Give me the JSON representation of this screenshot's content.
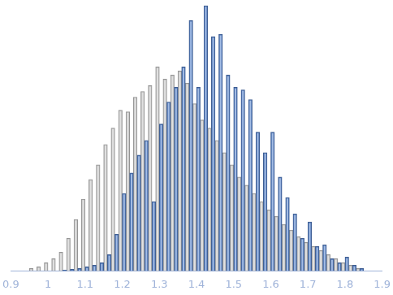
{
  "chart_data": {
    "type": "histogram",
    "bins": [
      0.94,
      0.96,
      0.98,
      1.0,
      1.02,
      1.04,
      1.06,
      1.08,
      1.1,
      1.12,
      1.14,
      1.16,
      1.18,
      1.2,
      1.22,
      1.24,
      1.26,
      1.28,
      1.3,
      1.32,
      1.34,
      1.36,
      1.38,
      1.4,
      1.42,
      1.44,
      1.46,
      1.48,
      1.5,
      1.52,
      1.54,
      1.56,
      1.58,
      1.6,
      1.62,
      1.64,
      1.66,
      1.68,
      1.7,
      1.72,
      1.74,
      1.76,
      1.78,
      1.8,
      1.82,
      1.84,
      1.86,
      1.88
    ],
    "series": [
      {
        "color": "#d4d4d4",
        "values": [
          3,
          5,
          10,
          15,
          23,
          40,
          63,
          88,
          112,
          130,
          155,
          175,
          197,
          195,
          213,
          220,
          227,
          250,
          235,
          240,
          245,
          230,
          205,
          185,
          175,
          160,
          145,
          130,
          115,
          105,
          95,
          85,
          75,
          67,
          57,
          50,
          42,
          35,
          30,
          25,
          20,
          15,
          10,
          7,
          3,
          0,
          0
        ]
      },
      {
        "color": "#5a86d0",
        "values": [
          0,
          0,
          0,
          0,
          0,
          1,
          2,
          3,
          5,
          7,
          10,
          20,
          45,
          95,
          120,
          142,
          160,
          85,
          180,
          207,
          225,
          250,
          307,
          225,
          325,
          287,
          290,
          240,
          225,
          222,
          210,
          170,
          145,
          170,
          115,
          90,
          70,
          40,
          60,
          30,
          32,
          15,
          10,
          17,
          7,
          3,
          0
        ]
      }
    ],
    "xlim": [
      0.9,
      1.9
    ],
    "xticks": [
      0.9,
      1,
      1.1,
      1.2,
      1.3,
      1.4,
      1.5,
      1.6,
      1.7,
      1.8,
      1.9
    ],
    "ylim": [
      0,
      330
    ],
    "tick_labels": "x",
    "grid": false
  }
}
